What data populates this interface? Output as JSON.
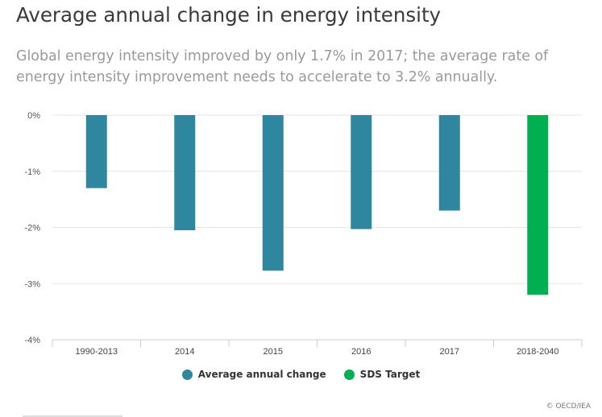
{
  "title": "Average annual change in energy intensity",
  "subtitle": "Global energy intensity improved by only 1.7% in 2017; the average rate of energy intensity improvement needs to accelerate to 3.2% annually.",
  "credit": "© OECD/IEA",
  "colors": {
    "actual": "#2e879e",
    "target": "#00b050"
  },
  "chart_data": {
    "type": "bar",
    "categories": [
      "1990-2013",
      "2014",
      "2015",
      "2016",
      "2017",
      "2018-2040"
    ],
    "values": [
      -1.3,
      -2.05,
      -2.77,
      -2.03,
      -1.7,
      -3.2
    ],
    "series_membership": [
      "Average annual change",
      "Average annual change",
      "Average annual change",
      "Average annual change",
      "Average annual change",
      "SDS Target"
    ],
    "y_ticks": [
      0,
      -1,
      -2,
      -3,
      -4
    ],
    "y_tick_labels": [
      "0%",
      "-1%",
      "-2%",
      "-3%",
      "-4%"
    ],
    "ylim": [
      -4,
      0
    ],
    "grid": true,
    "legend": [
      {
        "name": "Average annual change",
        "color": "#2e879e"
      },
      {
        "name": "SDS Target",
        "color": "#00b050"
      }
    ],
    "legend_position": "bottom"
  }
}
